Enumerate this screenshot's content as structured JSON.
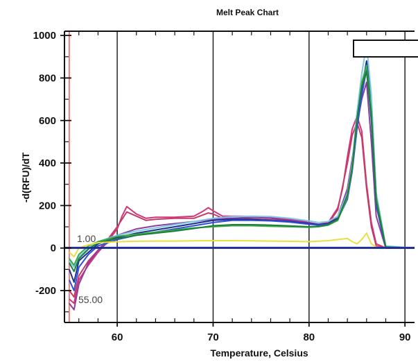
{
  "chart_data": {
    "type": "line",
    "title": "Melt Peak Chart",
    "xlabel": "Temperature, Celsius",
    "ylabel": "-d(RFU)/dT",
    "xlim": [
      54.5,
      91
    ],
    "ylim": [
      -350,
      1020
    ],
    "x_ticks": [
      60,
      70,
      80,
      90
    ],
    "y_ticks": [
      1000,
      800,
      600,
      400,
      200,
      0,
      -200
    ],
    "grid": "vertical",
    "threshold_label": "1.00",
    "start_temp_label": "55.00",
    "start_temp": 55,
    "threshold": 1,
    "colors": {
      "baseline": "#1f2f8f",
      "marker_line": "#f08080",
      "grid": "#222222"
    },
    "series": [
      {
        "color": "#d4357a",
        "x": [
          55,
          55.5,
          56,
          57,
          58,
          59,
          60,
          60.5,
          61,
          62,
          63,
          64,
          66,
          68,
          69,
          69.5,
          70,
          71,
          73,
          75,
          77,
          79,
          80,
          81,
          82,
          83,
          83.5,
          84,
          84.5,
          85,
          85.5,
          86,
          86.5,
          87,
          88,
          91
        ],
        "y": [
          -240,
          -260,
          -150,
          -80,
          -20,
          30,
          90,
          150,
          195,
          160,
          140,
          145,
          145,
          150,
          175,
          190,
          175,
          150,
          150,
          145,
          140,
          130,
          120,
          112,
          120,
          190,
          280,
          430,
          560,
          620,
          550,
          300,
          120,
          20,
          0,
          0
        ]
      },
      {
        "color": "#c23c6a",
        "x": [
          55,
          55.5,
          56,
          57,
          58,
          59,
          60,
          61,
          62,
          63,
          64,
          66,
          68,
          69.5,
          70,
          71,
          73,
          75,
          77,
          79,
          81,
          82,
          83,
          84,
          84.5,
          85,
          85.5,
          86,
          86.5,
          87,
          88,
          91
        ],
        "y": [
          -200,
          -230,
          -130,
          -60,
          -10,
          40,
          100,
          170,
          150,
          130,
          135,
          140,
          140,
          165,
          160,
          140,
          140,
          135,
          130,
          120,
          110,
          115,
          180,
          400,
          530,
          590,
          520,
          280,
          100,
          10,
          0,
          0
        ]
      },
      {
        "color": "#8b3fa0",
        "x": [
          55,
          55.5,
          56,
          57,
          58,
          60,
          62,
          64,
          66,
          68,
          70,
          72,
          74,
          76,
          78,
          80,
          81,
          82,
          83,
          84,
          84.5,
          85,
          85.5,
          86,
          86.5,
          87,
          88,
          91
        ],
        "y": [
          -260,
          -290,
          -170,
          -70,
          -10,
          60,
          90,
          105,
          115,
          125,
          135,
          140,
          145,
          140,
          130,
          118,
          112,
          115,
          150,
          280,
          420,
          580,
          700,
          780,
          500,
          150,
          0,
          0
        ]
      },
      {
        "color": "#1b2f8f",
        "x": [
          55,
          55.5,
          56,
          57,
          58,
          60,
          62,
          64,
          66,
          68,
          70,
          72,
          74,
          76,
          78,
          80,
          81,
          82,
          83,
          84,
          84.5,
          85,
          85.5,
          86,
          86.5,
          87,
          88,
          91
        ],
        "y": [
          -100,
          -160,
          -60,
          -20,
          20,
          50,
          70,
          85,
          100,
          115,
          130,
          135,
          135,
          130,
          125,
          115,
          110,
          115,
          140,
          250,
          380,
          600,
          750,
          880,
          700,
          250,
          0,
          0
        ]
      },
      {
        "color": "#2f4fd6",
        "x": [
          55,
          55.5,
          56,
          57,
          58,
          60,
          62,
          64,
          66,
          68,
          70,
          72,
          74,
          76,
          78,
          80,
          81,
          82,
          83,
          84,
          84.5,
          85,
          85.5,
          86,
          86.5,
          87,
          88,
          91
        ],
        "y": [
          -150,
          -200,
          -90,
          -30,
          10,
          40,
          60,
          75,
          90,
          105,
          120,
          130,
          130,
          128,
          122,
          112,
          108,
          112,
          135,
          230,
          360,
          560,
          720,
          840,
          600,
          200,
          0,
          0
        ]
      },
      {
        "color": "#7fc8e8",
        "x": [
          55,
          55.5,
          56,
          57,
          58,
          60,
          62,
          64,
          66,
          68,
          70,
          72,
          74,
          76,
          78,
          80,
          81,
          82,
          83,
          84,
          84.5,
          85,
          85.5,
          86,
          86.5,
          87,
          88,
          91
        ],
        "y": [
          -60,
          -90,
          -40,
          0,
          30,
          60,
          80,
          95,
          110,
          125,
          140,
          148,
          150,
          148,
          140,
          128,
          120,
          125,
          150,
          260,
          400,
          640,
          820,
          960,
          720,
          260,
          10,
          0
        ]
      },
      {
        "color": "#3aaa4a",
        "x": [
          55,
          55.5,
          56,
          57,
          58,
          60,
          62,
          64,
          66,
          68,
          70,
          72,
          74,
          76,
          78,
          80,
          81,
          82,
          83,
          84,
          84.5,
          85,
          85.5,
          86,
          86.5,
          87,
          88,
          91
        ],
        "y": [
          -50,
          -80,
          -30,
          10,
          30,
          55,
          65,
          75,
          85,
          95,
          100,
          105,
          105,
          102,
          100,
          98,
          100,
          108,
          130,
          240,
          370,
          600,
          780,
          860,
          650,
          240,
          5,
          0
        ]
      },
      {
        "color": "#1f7f3a",
        "x": [
          55,
          55.5,
          56,
          57,
          58,
          60,
          62,
          64,
          66,
          68,
          70,
          72,
          74,
          76,
          78,
          80,
          81,
          82,
          83,
          84,
          84.5,
          85,
          85.5,
          86,
          86.5,
          87,
          88,
          91
        ],
        "y": [
          -70,
          -110,
          -50,
          -5,
          25,
          45,
          60,
          70,
          80,
          92,
          105,
          110,
          110,
          108,
          104,
          100,
          102,
          110,
          135,
          250,
          380,
          610,
          760,
          830,
          620,
          220,
          5,
          0
        ]
      },
      {
        "color": "#e8e040",
        "x": [
          55,
          55.5,
          56,
          57,
          58,
          60,
          62,
          64,
          66,
          68,
          70,
          72,
          74,
          76,
          78,
          80,
          82,
          83,
          84,
          84.5,
          85,
          85.5,
          86,
          86.5,
          87,
          88,
          91
        ],
        "y": [
          -20,
          -40,
          0,
          15,
          25,
          30,
          32,
          33,
          33,
          34,
          35,
          35,
          34,
          33,
          32,
          30,
          35,
          40,
          45,
          30,
          20,
          40,
          70,
          20,
          5,
          0,
          0
        ]
      }
    ]
  }
}
